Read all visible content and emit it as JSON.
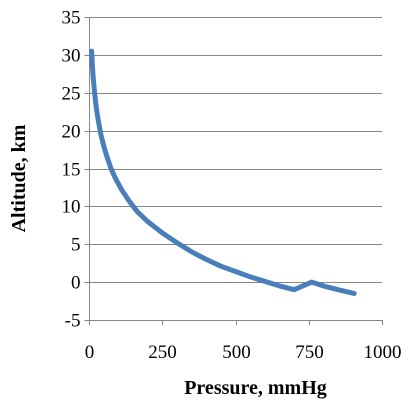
{
  "chart_data": {
    "type": "line",
    "title": "",
    "xlabel": "Pressure, mmHg",
    "ylabel": "Altitude, km",
    "xlim": [
      0,
      1000
    ],
    "ylim": [
      -5,
      35
    ],
    "x_ticks": [
      0,
      250,
      500,
      750,
      1000
    ],
    "x_tick_labels": [
      "0",
      "250",
      "500",
      "750",
      "1000"
    ],
    "y_ticks": [
      -5,
      0,
      5,
      10,
      15,
      20,
      25,
      30,
      35
    ],
    "y_tick_labels": [
      "-5",
      "0",
      "5",
      "10",
      "15",
      "20",
      "25",
      "30",
      "35"
    ],
    "grid": "horizontal",
    "legend": "none",
    "series": [
      {
        "color": "#4a7ebb",
        "x": [
          8.9,
          12.0,
          15.0,
          20.0,
          25.0,
          30.0,
          40.0,
          50.0,
          60.0,
          75.0,
          90.0,
          110.0,
          135.0,
          165.0,
          200.0,
          250.0,
          300.0,
          350.0,
          400.0,
          450.0,
          500.0,
          550.0,
          600.0,
          650.0,
          700.0,
          760.0,
          800.0,
          850.0,
          905.0
        ],
        "y": [
          30.5,
          28.3,
          26.7,
          24.6,
          23.0,
          21.7,
          19.6,
          18.0,
          16.7,
          15.0,
          13.7,
          12.3,
          10.8,
          9.3,
          8.0,
          6.5,
          5.2,
          4.0,
          3.0,
          2.1,
          1.4,
          0.7,
          0.1,
          -0.5,
          -1.0,
          0.0,
          -0.5,
          -1.0,
          -1.5
        ]
      }
    ]
  }
}
